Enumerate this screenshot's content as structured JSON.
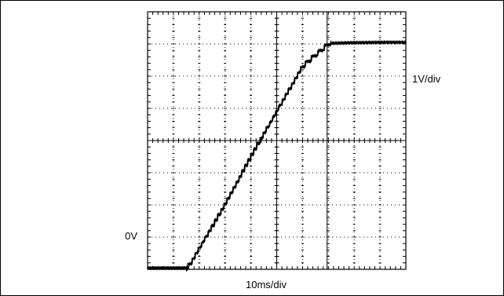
{
  "labels": {
    "ground_reference": "0V",
    "vertical_scale": "1V/div",
    "horizontal_scale": "10ms/div"
  },
  "chart_data": {
    "type": "line",
    "xlabel": "10ms/div",
    "ylabel": "1V/div",
    "xlim": [
      0,
      100
    ],
    "ylim": [
      0,
      8
    ],
    "grid": true,
    "grid_divisions": {
      "x": 10,
      "y": 8
    },
    "units": {
      "x": "ms",
      "y": "V"
    },
    "series": [
      {
        "style": "staircase",
        "x": [
          0,
          15,
          16.5,
          20,
          30,
          40,
          50,
          60,
          70,
          71,
          80,
          82,
          90,
          100
        ],
        "values": [
          0.04,
          0.04,
          0.15,
          0.65,
          2.0,
          3.5,
          4.9,
          6.3,
          7.0,
          7.02,
          7.04,
          7.04,
          7.05,
          7.05
        ]
      }
    ],
    "cursor_x": 69.5,
    "colors": {
      "trace": "#000000",
      "grid": "#000000"
    }
  }
}
